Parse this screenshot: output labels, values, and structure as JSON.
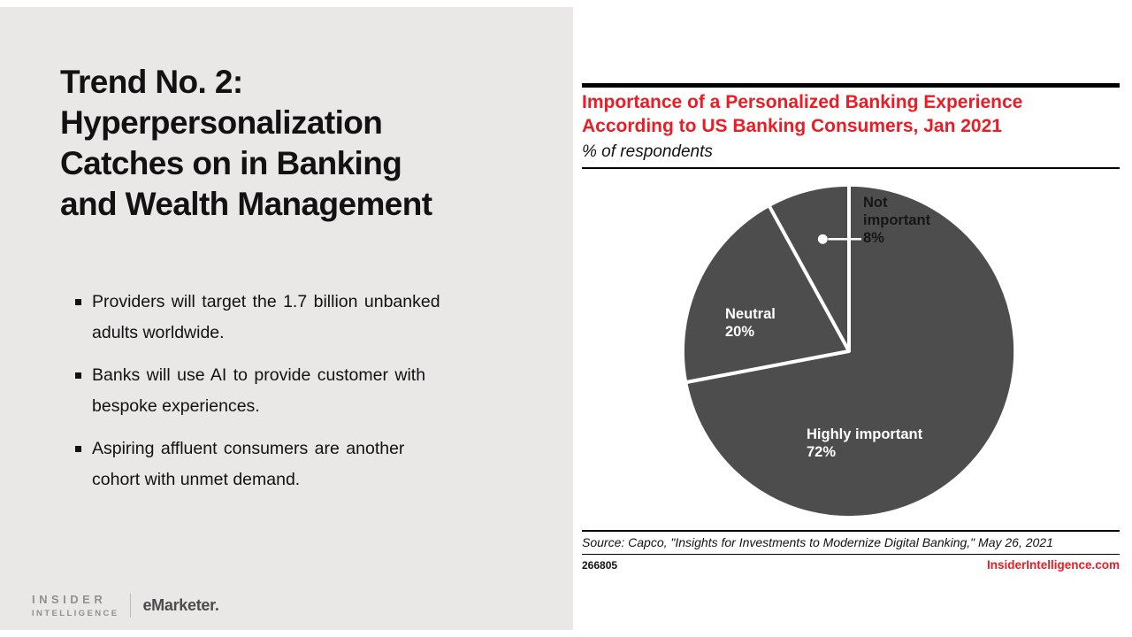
{
  "left_panel": {
    "title_lines": [
      "Trend No. 2:",
      "Hyperpersonalization",
      "Catches on in Banking",
      "and Wealth Management"
    ],
    "bullets": [
      {
        "lines": [
          "Providers will target the 1.7 billion unbanked",
          "adults worldwide."
        ]
      },
      {
        "lines": [
          "Banks will use AI to provide customer with",
          "bespoke experiences."
        ]
      },
      {
        "lines": [
          "Aspiring affluent consumers are another",
          "cohort with unmet demand."
        ]
      }
    ],
    "brand": {
      "line1": "INSIDER",
      "line2": "INTELLIGENCE",
      "secondary": "eMarketer."
    }
  },
  "chart_panel": {
    "title_line1": "Importance of a Personalized Banking Experience",
    "title_line2": "According to US Banking Consumers, Jan 2021",
    "subtitle": "% of respondents",
    "source": "Source: Capco, \"Insights for Investments to Modernize Digital Banking,\" May 26, 2021",
    "chart_id": "266805",
    "site": "InsiderIntelligence.com",
    "accent_color": "#ed1c24",
    "pie_color": "#4d4d4d"
  },
  "chart_data": {
    "type": "pie",
    "title": "Importance of a Personalized Banking Experience According to US Banking Consumers, Jan 2021",
    "unit": "% of respondents",
    "start_angle_deg": 0,
    "direction": "clockwise",
    "slices": [
      {
        "label": "Highly important",
        "value": 72,
        "display": "72%"
      },
      {
        "label": "Neutral",
        "value": 20,
        "display": "20%"
      },
      {
        "label": "Not important",
        "value": 8,
        "display": "8%"
      }
    ]
  }
}
